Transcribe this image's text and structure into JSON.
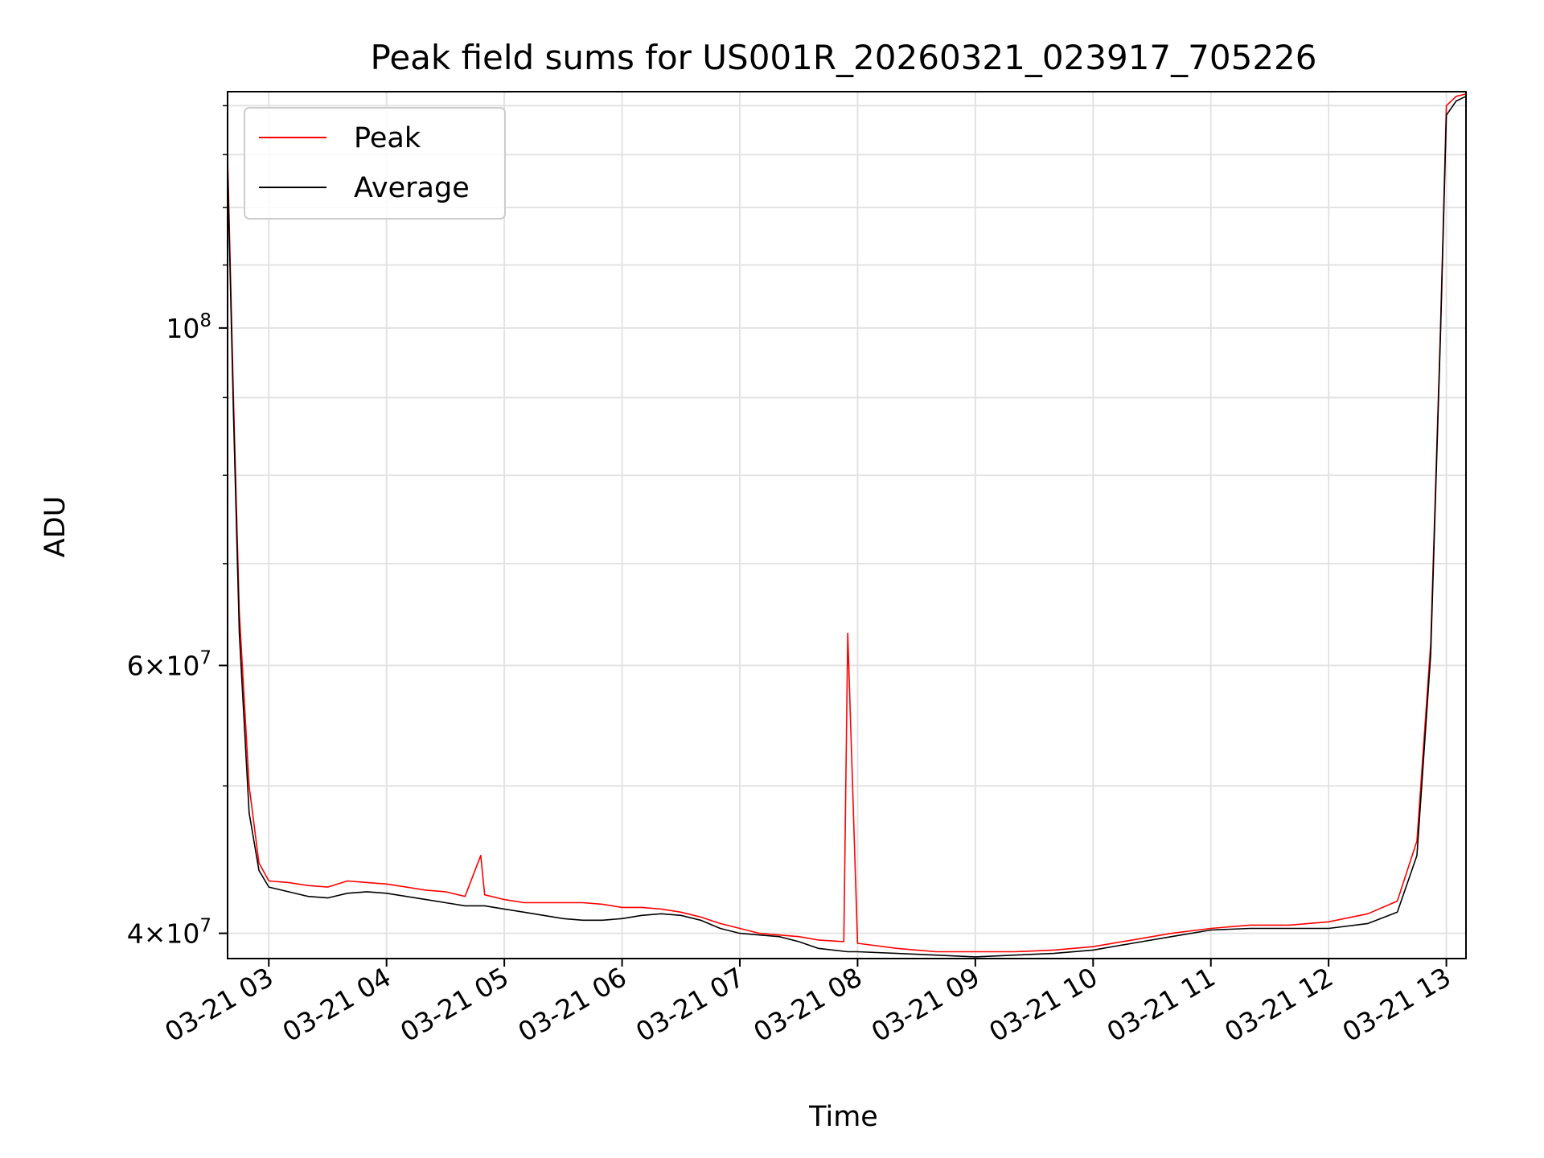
{
  "chart_data": {
    "type": "line",
    "title": "Peak field sums for US001R_20260321_023917_705226",
    "xlabel": "Time",
    "ylabel": "ADU",
    "x_range": [
      "2026-03-21 02:39",
      "2026-03-21 13:10"
    ],
    "x_tick_labels": [
      "03-21 03",
      "03-21 04",
      "03-21 05",
      "03-21 06",
      "03-21 07",
      "03-21 08",
      "03-21 09",
      "03-21 10",
      "03-21 11",
      "03-21 12",
      "03-21 13"
    ],
    "y_scale": "log",
    "ylim": [
      38500000,
      143000000
    ],
    "y_tick_labels": [
      {
        "value": 40000000,
        "mantissa": "4",
        "exp": "7"
      },
      {
        "value": 60000000,
        "mantissa": "6",
        "exp": "7"
      },
      {
        "value": 100000000,
        "mantissa": "",
        "exp": "8"
      }
    ],
    "grid": true,
    "legend_position": "upper-left",
    "series": [
      {
        "name": "Peak",
        "color": "#ff0000",
        "x": [
          "2026-03-21 02:39",
          "2026-03-21 02:42",
          "2026-03-21 02:45",
          "2026-03-21 02:50",
          "2026-03-21 02:55",
          "2026-03-21 03:00",
          "2026-03-21 03:10",
          "2026-03-21 03:20",
          "2026-03-21 03:30",
          "2026-03-21 03:40",
          "2026-03-21 03:50",
          "2026-03-21 04:00",
          "2026-03-21 04:10",
          "2026-03-21 04:20",
          "2026-03-21 04:30",
          "2026-03-21 04:40",
          "2026-03-21 04:48",
          "2026-03-21 04:50",
          "2026-03-21 05:00",
          "2026-03-21 05:10",
          "2026-03-21 05:20",
          "2026-03-21 05:30",
          "2026-03-21 05:40",
          "2026-03-21 05:50",
          "2026-03-21 06:00",
          "2026-03-21 06:10",
          "2026-03-21 06:20",
          "2026-03-21 06:30",
          "2026-03-21 06:40",
          "2026-03-21 06:50",
          "2026-03-21 07:00",
          "2026-03-21 07:10",
          "2026-03-21 07:20",
          "2026-03-21 07:30",
          "2026-03-21 07:40",
          "2026-03-21 07:53",
          "2026-03-21 07:55",
          "2026-03-21 08:00",
          "2026-03-21 08:20",
          "2026-03-21 08:40",
          "2026-03-21 09:00",
          "2026-03-21 09:20",
          "2026-03-21 09:40",
          "2026-03-21 10:00",
          "2026-03-21 10:20",
          "2026-03-21 10:40",
          "2026-03-21 11:00",
          "2026-03-21 11:20",
          "2026-03-21 11:40",
          "2026-03-21 12:00",
          "2026-03-21 12:20",
          "2026-03-21 12:35",
          "2026-03-21 12:45",
          "2026-03-21 12:52",
          "2026-03-21 12:57",
          "2026-03-21 13:00",
          "2026-03-21 13:05",
          "2026-03-21 13:10"
        ],
        "y": [
          130000000,
          90000000,
          65000000,
          50000000,
          44500000,
          43300000,
          43200000,
          43000000,
          42900000,
          43300000,
          43200000,
          43100000,
          42900000,
          42700000,
          42600000,
          42300000,
          45000000,
          42400000,
          42100000,
          41900000,
          41900000,
          41900000,
          41900000,
          41800000,
          41600000,
          41600000,
          41500000,
          41300000,
          41000000,
          40600000,
          40300000,
          40000000,
          39900000,
          39800000,
          39600000,
          39500000,
          63000000,
          39400000,
          39100000,
          38900000,
          38900000,
          38900000,
          39000000,
          39200000,
          39600000,
          40000000,
          40300000,
          40500000,
          40500000,
          40700000,
          41200000,
          42000000,
          46000000,
          62000000,
          100000000,
          140000000,
          142000000,
          142500000
        ]
      },
      {
        "name": "Average",
        "color": "#000000",
        "x": [
          "2026-03-21 02:39",
          "2026-03-21 02:42",
          "2026-03-21 02:45",
          "2026-03-21 02:50",
          "2026-03-21 02:55",
          "2026-03-21 03:00",
          "2026-03-21 03:10",
          "2026-03-21 03:20",
          "2026-03-21 03:30",
          "2026-03-21 03:40",
          "2026-03-21 03:50",
          "2026-03-21 04:00",
          "2026-03-21 04:10",
          "2026-03-21 04:20",
          "2026-03-21 04:30",
          "2026-03-21 04:40",
          "2026-03-21 04:50",
          "2026-03-21 05:00",
          "2026-03-21 05:10",
          "2026-03-21 05:20",
          "2026-03-21 05:30",
          "2026-03-21 05:40",
          "2026-03-21 05:50",
          "2026-03-21 06:00",
          "2026-03-21 06:10",
          "2026-03-21 06:20",
          "2026-03-21 06:30",
          "2026-03-21 06:40",
          "2026-03-21 06:50",
          "2026-03-21 07:00",
          "2026-03-21 07:10",
          "2026-03-21 07:20",
          "2026-03-21 07:30",
          "2026-03-21 07:40",
          "2026-03-21 07:55",
          "2026-03-21 08:00",
          "2026-03-21 08:20",
          "2026-03-21 08:40",
          "2026-03-21 09:00",
          "2026-03-21 09:20",
          "2026-03-21 09:40",
          "2026-03-21 10:00",
          "2026-03-21 10:20",
          "2026-03-21 10:40",
          "2026-03-21 11:00",
          "2026-03-21 11:20",
          "2026-03-21 11:40",
          "2026-03-21 12:00",
          "2026-03-21 12:20",
          "2026-03-21 12:35",
          "2026-03-21 12:45",
          "2026-03-21 12:52",
          "2026-03-21 12:57",
          "2026-03-21 13:00",
          "2026-03-21 13:05",
          "2026-03-21 13:10"
        ],
        "y": [
          128000000,
          88000000,
          63000000,
          48000000,
          44000000,
          42900000,
          42600000,
          42300000,
          42200000,
          42500000,
          42600000,
          42500000,
          42300000,
          42100000,
          41900000,
          41700000,
          41700000,
          41500000,
          41300000,
          41100000,
          40900000,
          40800000,
          40800000,
          40900000,
          41100000,
          41200000,
          41100000,
          40800000,
          40300000,
          40000000,
          39900000,
          39800000,
          39500000,
          39100000,
          38900000,
          38900000,
          38800000,
          38700000,
          38600000,
          38700000,
          38800000,
          39000000,
          39400000,
          39800000,
          40200000,
          40300000,
          40300000,
          40300000,
          40600000,
          41300000,
          45000000,
          61000000,
          99000000,
          138000000,
          141000000,
          142000000
        ]
      }
    ]
  }
}
